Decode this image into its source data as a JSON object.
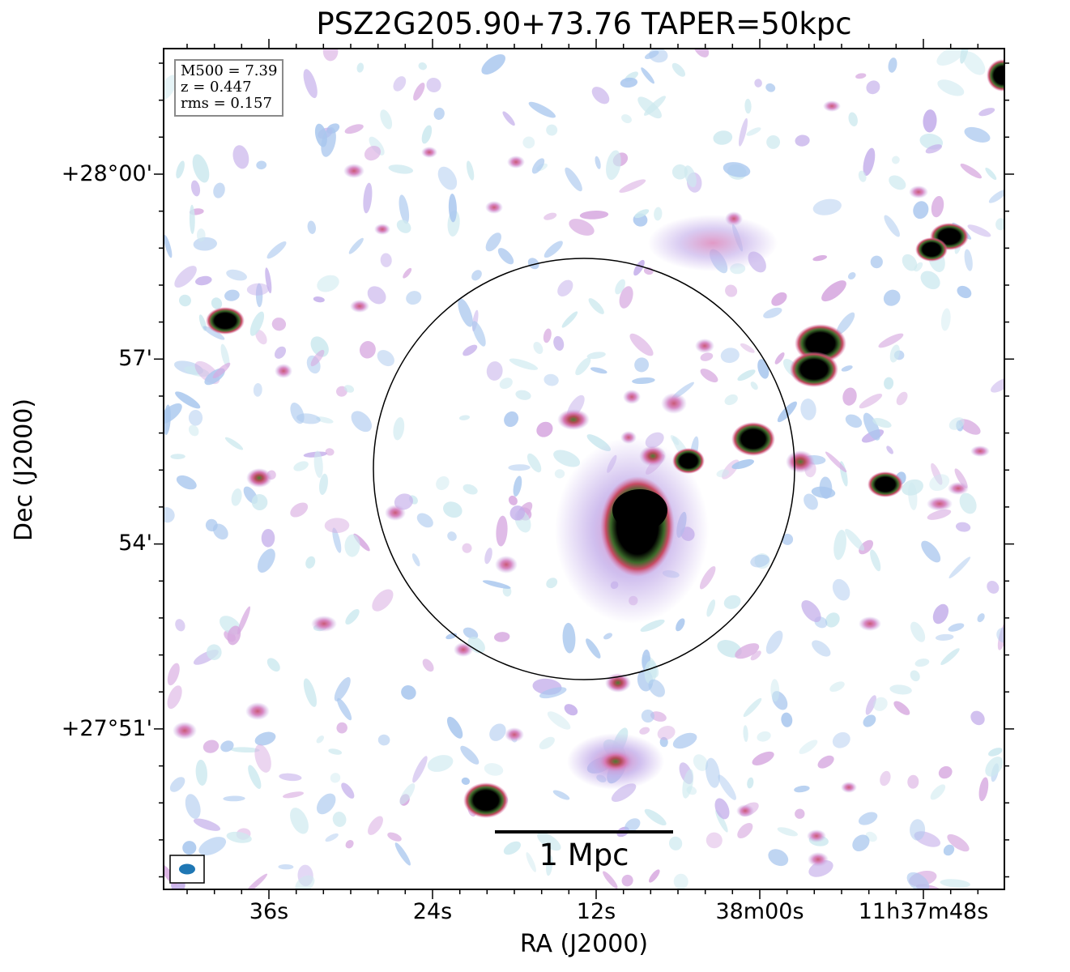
{
  "title": "PSZ2G205.90+73.76 TAPER=50kpc",
  "info_box": {
    "lines": [
      "M500 = 7.39",
      "z = 0.447",
      "rms = 0.157"
    ]
  },
  "axes": {
    "xlabel": "RA (J2000)",
    "ylabel": "Dec (J2000)",
    "x_ticks": [
      "36s",
      "24s",
      "12s",
      "38m00s",
      "11h37m48s"
    ],
    "y_ticks": [
      "+28°00'",
      "57'",
      "54'",
      "+27°51'"
    ]
  },
  "scalebar": {
    "label": "1 Mpc"
  },
  "colors": {
    "cyan_low": "#cde9ef",
    "blue": "#a9c7ee",
    "lavender": "#c4aeea",
    "pink": "#d87ab4",
    "red": "#c84a63",
    "green": "#4e8a36",
    "black": "#000000",
    "beam": "#1f77b4"
  }
}
